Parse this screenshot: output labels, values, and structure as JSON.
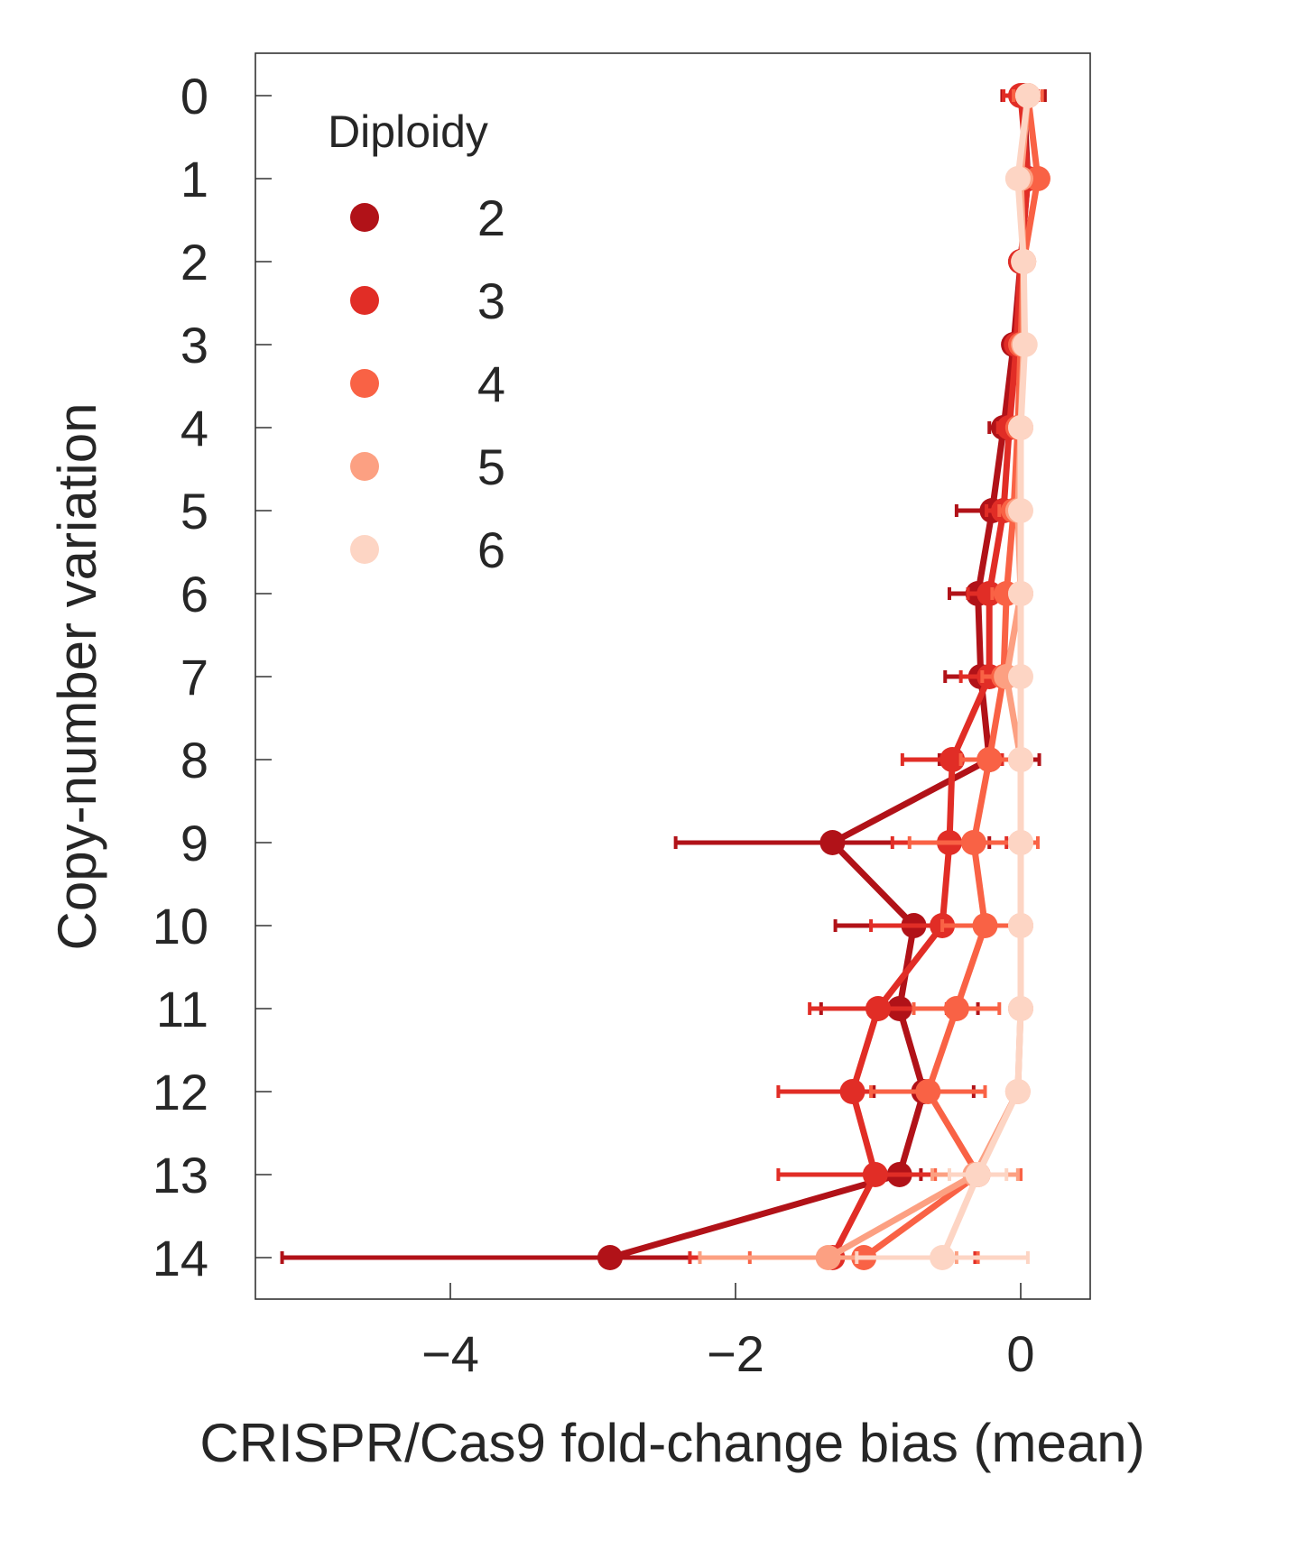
{
  "chart_data": {
    "type": "line",
    "orientation": "horizontal",
    "xlabel": "CRISPR/Cas9 fold-change bias (mean)",
    "ylabel": "Copy-number variation",
    "xlim": [
      -5.4,
      0.5
    ],
    "ylim": [
      14.5,
      -0.5
    ],
    "x_ticks": [
      -4,
      -2,
      0
    ],
    "x_tick_labels": [
      "−4",
      "−2",
      "0"
    ],
    "y_ticks": [
      0,
      1,
      2,
      3,
      4,
      5,
      6,
      7,
      8,
      9,
      10,
      11,
      12,
      13,
      14
    ],
    "y_tick_labels": [
      "0",
      "1",
      "2",
      "3",
      "4",
      "5",
      "6",
      "7",
      "8",
      "9",
      "10",
      "11",
      "12",
      "13",
      "14"
    ],
    "grid": false,
    "legend": {
      "title": "Diploidy",
      "location": "top-left"
    },
    "series": [
      {
        "name": "2",
        "color": "#b11218",
        "cnv": [
          0,
          1,
          2,
          3,
          4,
          5,
          6,
          7,
          8,
          9,
          10,
          11,
          12,
          13,
          14
        ],
        "mean": [
          0.02,
          0.05,
          0.0,
          -0.05,
          -0.12,
          -0.2,
          -0.3,
          -0.28,
          -0.22,
          -1.32,
          -0.75,
          -0.85,
          -0.68,
          -0.85,
          -2.88
        ],
        "err": [
          0.15,
          0.06,
          0.05,
          0.05,
          0.1,
          0.25,
          0.2,
          0.25,
          0.35,
          1.1,
          0.55,
          0.55,
          0.35,
          0.15,
          2.3
        ]
      },
      {
        "name": "3",
        "color": "#e12d26",
        "cnv": [
          0,
          1,
          2,
          3,
          4,
          5,
          6,
          7,
          8,
          9,
          10,
          11,
          12,
          13,
          14
        ],
        "mean": [
          0.0,
          0.05,
          0.0,
          -0.03,
          -0.08,
          -0.12,
          -0.22,
          -0.22,
          -0.48,
          -0.5,
          -0.55,
          -1.0,
          -1.18,
          -1.02,
          -1.32
        ],
        "err": [
          0.12,
          0.05,
          0.05,
          0.05,
          0.08,
          0.12,
          0.15,
          0.2,
          0.35,
          0.4,
          0.5,
          0.48,
          0.52,
          0.68,
          1.0
        ]
      },
      {
        "name": "4",
        "color": "#f96245",
        "cnv": [
          0,
          1,
          2,
          3,
          4,
          5,
          6,
          7,
          8,
          9,
          10,
          11,
          12,
          13,
          14
        ],
        "mean": [
          0.05,
          0.12,
          0.02,
          0.0,
          -0.02,
          -0.05,
          -0.1,
          -0.12,
          -0.22,
          -0.33,
          -0.25,
          -0.45,
          -0.65,
          -0.3,
          -1.1
        ],
        "err": [
          0.1,
          0.05,
          0.05,
          0.05,
          0.06,
          0.1,
          0.1,
          0.15,
          0.2,
          0.45,
          0.3,
          0.3,
          0.4,
          0.3,
          0.8
        ]
      },
      {
        "name": "5",
        "color": "#fca082",
        "cnv": [
          0,
          1,
          2,
          3,
          4,
          5,
          6,
          7,
          8,
          9,
          10,
          11,
          12,
          13,
          14
        ],
        "mean": [
          0.05,
          0.0,
          0.02,
          0.02,
          0.0,
          -0.02,
          0.0,
          -0.1,
          0.0,
          0.0,
          0.0,
          0.0,
          -0.02,
          -0.32,
          -1.35
        ],
        "err": [
          0.05,
          0.05,
          0.05,
          0.05,
          0.05,
          0.05,
          0.05,
          0.05,
          0.05,
          0.05,
          0.05,
          0.05,
          0.05,
          0.3,
          0.9
        ]
      },
      {
        "name": "6",
        "color": "#fdd5c4",
        "cnv": [
          0,
          1,
          2,
          3,
          4,
          5,
          6,
          7,
          8,
          9,
          10,
          11,
          12,
          13,
          14
        ],
        "mean": [
          0.05,
          -0.02,
          0.02,
          0.03,
          0.0,
          0.0,
          0.0,
          0.0,
          0.0,
          0.0,
          0.0,
          0.0,
          -0.02,
          -0.3,
          -0.55
        ],
        "err": [
          0.05,
          0.05,
          0.05,
          0.05,
          0.05,
          0.05,
          0.05,
          0.05,
          0.05,
          0.05,
          0.05,
          0.05,
          0.05,
          0.2,
          0.6
        ]
      }
    ]
  }
}
